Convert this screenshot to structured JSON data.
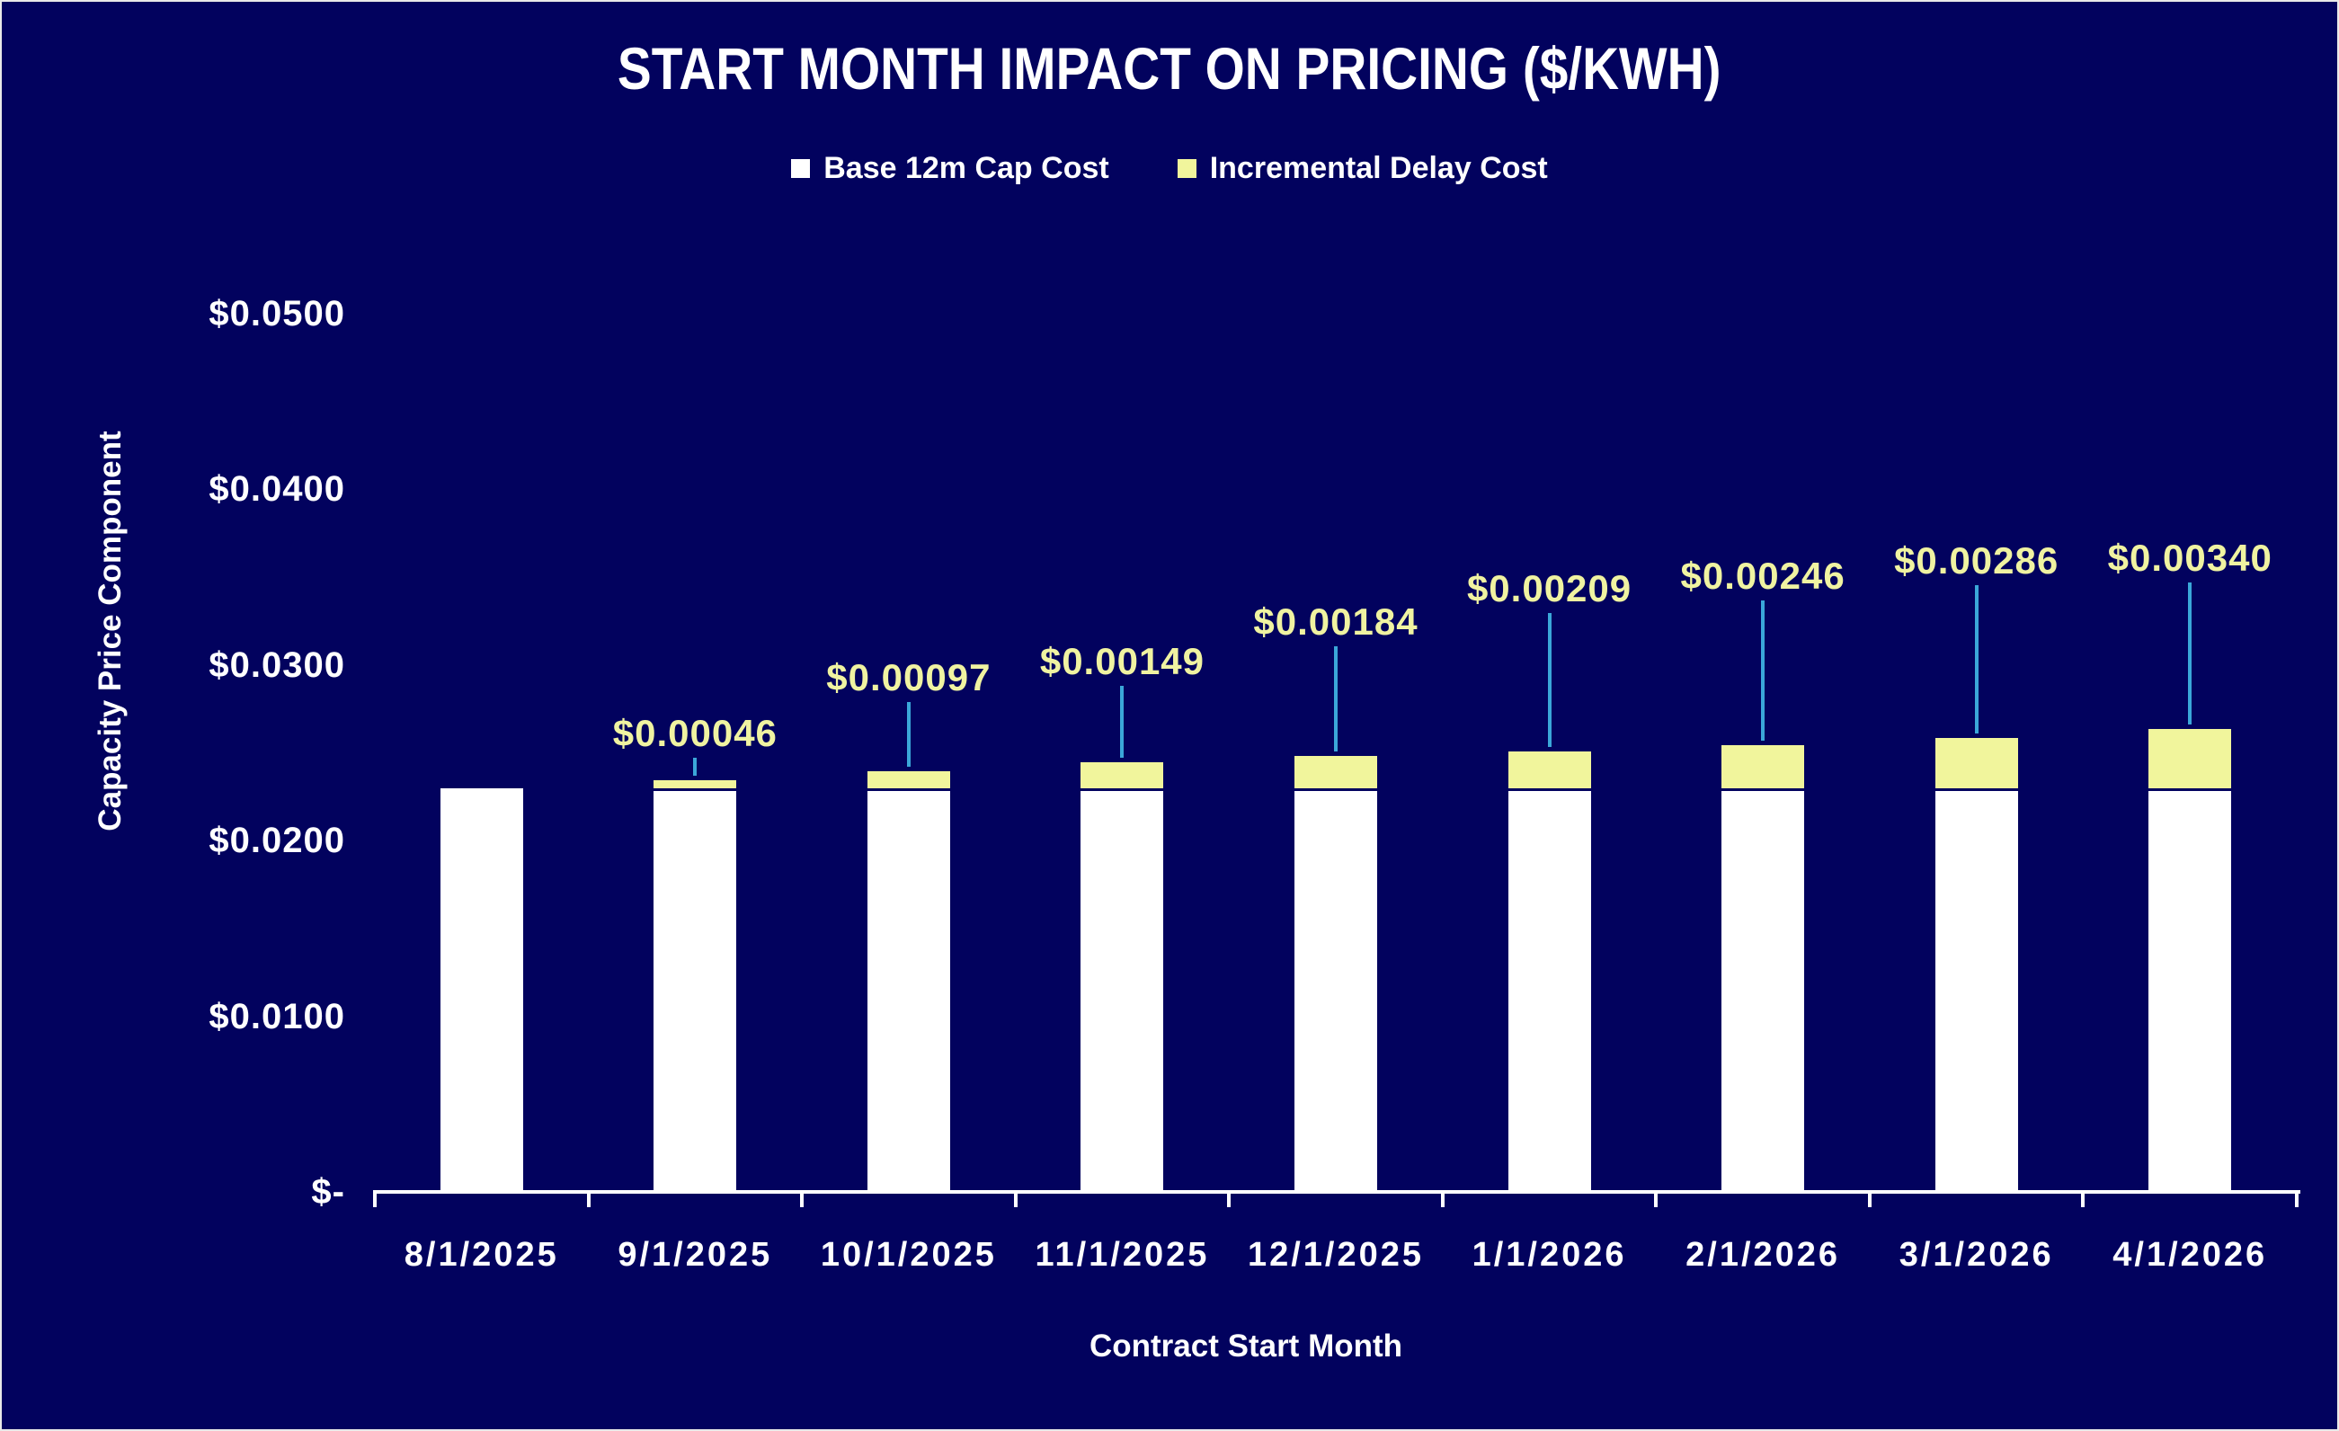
{
  "title": "START MONTH IMPACT ON PRICING ($/KWH)",
  "chart_data": {
    "type": "bar",
    "stacked": true,
    "title": "START MONTH IMPACT ON PRICING ($/KWH)",
    "categories": [
      "8/1/2025",
      "9/1/2025",
      "10/1/2025",
      "11/1/2025",
      "12/1/2025",
      "1/1/2026",
      "2/1/2026",
      "3/1/2026",
      "4/1/2026"
    ],
    "series": [
      {
        "name": "Base 12m Cap Cost",
        "color": "#FFFFFF",
        "values": [
          0.023,
          0.023,
          0.023,
          0.023,
          0.023,
          0.023,
          0.023,
          0.023,
          0.023
        ]
      },
      {
        "name": "Incremental Delay Cost",
        "color": "#F1F59C",
        "values": [
          0,
          0.00046,
          0.00097,
          0.00149,
          0.00184,
          0.00209,
          0.00246,
          0.00286,
          0.0034
        ]
      }
    ],
    "data_labels": [
      "",
      "$0.00046",
      "$0.00097",
      "$0.00149",
      "$0.00184",
      "$0.00209",
      "$0.00246",
      "$0.00286",
      "$0.00340"
    ],
    "xlabel": "Contract Start Month",
    "ylabel": "Capacity Price Component",
    "ylim": [
      0,
      0.05
    ],
    "y_ticks": [
      {
        "v": 0,
        "label": "$-"
      },
      {
        "v": 0.01,
        "label": "$0.0100"
      },
      {
        "v": 0.02,
        "label": "$0.0200"
      },
      {
        "v": 0.03,
        "label": "$0.0300"
      },
      {
        "v": 0.04,
        "label": "$0.0400"
      },
      {
        "v": 0.05,
        "label": "$0.0500"
      }
    ],
    "legend_position": "top",
    "grid": false,
    "colors": {
      "background": "#02025E",
      "base_bar": "#FFFFFF",
      "delay_bar": "#F1F59C",
      "data_label": "#F0F3A1",
      "leader_line": "#3BA7D9",
      "axis": "#FFFFFF"
    },
    "label_y_centers": [
      0,
      814,
      752,
      734,
      690,
      653,
      639,
      622,
      619
    ]
  }
}
